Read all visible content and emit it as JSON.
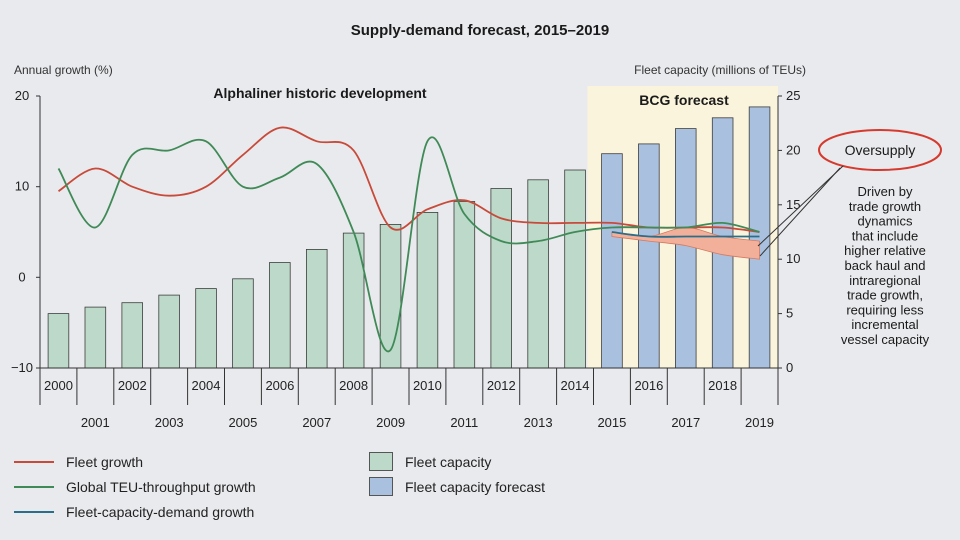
{
  "chart_data": {
    "type": "bar+line",
    "title": "Supply-demand forecast, 2015–2019",
    "left_axis": {
      "label": "Annual growth (%)",
      "range": [
        -10,
        20
      ],
      "ticks": [
        "20",
        "10",
        "0",
        "−10"
      ]
    },
    "right_axis": {
      "label": "Fleet capacity (millions of TEUs)",
      "range": [
        0,
        25
      ],
      "ticks": [
        "25",
        "20",
        "15",
        "10",
        "5",
        "0"
      ]
    },
    "categories": [
      "2000",
      "2001",
      "2002",
      "2003",
      "2004",
      "2005",
      "2006",
      "2007",
      "2008",
      "2009",
      "2010",
      "2011",
      "2012",
      "2013",
      "2014",
      "2015",
      "2016",
      "2017",
      "2018",
      "2019"
    ],
    "bars": [
      {
        "name": "Fleet capacity",
        "axis": "right",
        "color": "#bcd9c9",
        "values": [
          5.0,
          5.6,
          6.0,
          6.7,
          7.3,
          8.2,
          9.7,
          10.9,
          12.4,
          13.2,
          14.3,
          15.3,
          16.5,
          17.3,
          18.2,
          null,
          null,
          null,
          null,
          null
        ]
      },
      {
        "name": "Fleet capacity forecast",
        "axis": "right",
        "color": "#a9c1de",
        "values": [
          null,
          null,
          null,
          null,
          null,
          null,
          null,
          null,
          null,
          null,
          null,
          null,
          null,
          null,
          null,
          19.7,
          20.6,
          22.0,
          23.0,
          24.0
        ]
      }
    ],
    "series": [
      {
        "name": "Fleet growth",
        "axis": "left",
        "color": "#c84a3a",
        "x": [
          2000,
          2001,
          2002,
          2003,
          2004,
          2005,
          2006,
          2007,
          2008,
          2009,
          2010,
          2011,
          2012,
          2013,
          2014,
          2015,
          2016,
          2017,
          2018,
          2019
        ],
        "y": [
          9.5,
          12.0,
          10.0,
          9.0,
          10.0,
          13.5,
          16.5,
          15.0,
          14.0,
          5.5,
          7.5,
          8.5,
          6.5,
          6.0,
          6.0,
          6.0,
          5.5,
          5.5,
          5.5,
          5.0
        ]
      },
      {
        "name": "Global TEU-throughput growth",
        "axis": "left",
        "color": "#3f8a57",
        "x": [
          2000,
          2001,
          2002,
          2003,
          2004,
          2005,
          2006,
          2007,
          2008,
          2009,
          2010,
          2011,
          2012,
          2013,
          2014,
          2015,
          2016,
          2017,
          2018,
          2019
        ],
        "y": [
          12.0,
          5.5,
          13.5,
          14.0,
          15.0,
          10.0,
          11.0,
          12.5,
          5.0,
          -8.0,
          15.0,
          7.0,
          4.0,
          4.0,
          5.0,
          5.5,
          5.5,
          5.5,
          6.0,
          5.0
        ]
      },
      {
        "name": "Fleet-capacity-demand growth",
        "axis": "left",
        "color": "#2b6e8a",
        "x": [
          2015,
          2016,
          2017,
          2018,
          2019
        ],
        "y": [
          5.0,
          4.5,
          4.5,
          4.5,
          4.5
        ]
      }
    ],
    "oversupply_band": {
      "x": [
        2015,
        2016,
        2017,
        2018,
        2019
      ],
      "upper": [
        5.0,
        4.5,
        5.5,
        4.5,
        4.0
      ],
      "lower": [
        4.5,
        4.0,
        3.5,
        2.5,
        2.0
      ]
    },
    "annotations": {
      "historic": "Alphaliner historic development",
      "forecast": "BCG forecast",
      "oversupply": "Oversupply",
      "note_lines": [
        "Driven by",
        "trade growth",
        "dynamics",
        "that include",
        "higher relative",
        "back haul and",
        "intraregional",
        "trade growth,",
        "requiring less",
        "incremental",
        "vessel capacity"
      ]
    },
    "legend": {
      "placement": "bottom-left",
      "items": [
        "Fleet growth",
        "Global TEU-throughput growth",
        "Fleet-capacity-demand growth",
        "Fleet capacity",
        "Fleet capacity forecast"
      ]
    }
  },
  "colors": {
    "forecast_shade": "#fbf4dc",
    "oversupply_fill": "#f2b09a",
    "oversupply_ring": "#d63a2e"
  }
}
